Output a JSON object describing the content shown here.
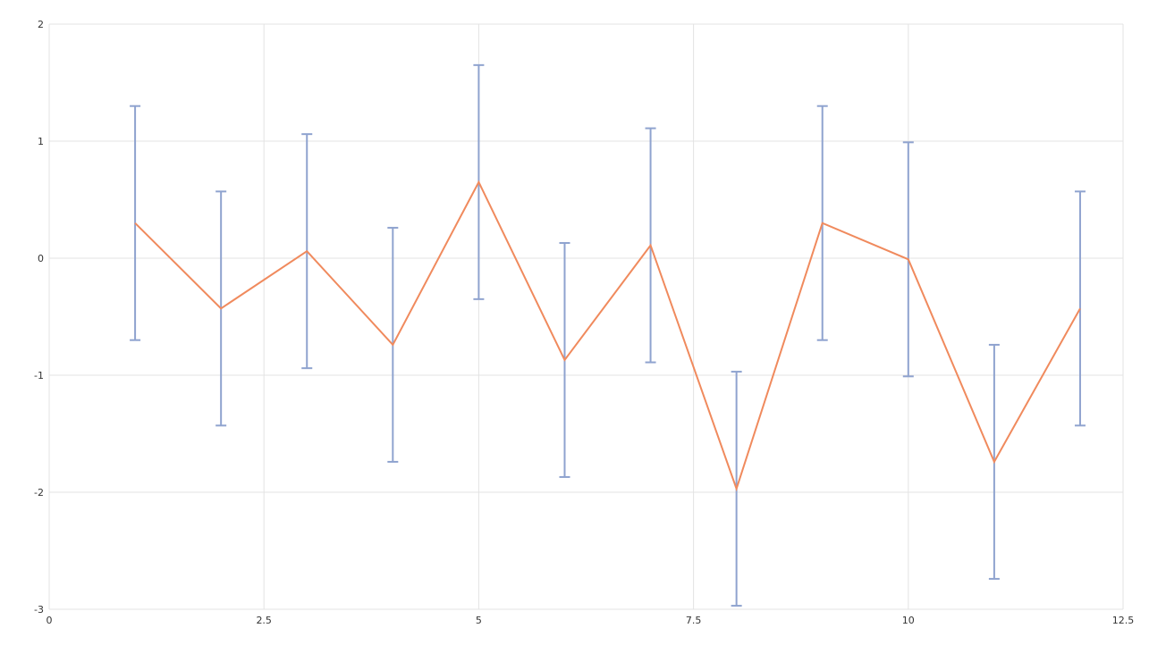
{
  "chart_data": {
    "type": "line",
    "title": "",
    "xlabel": "",
    "ylabel": "",
    "xlim": [
      0,
      12.5
    ],
    "ylim": [
      -3,
      2
    ],
    "x_ticks": [
      0,
      2.5,
      5,
      7.5,
      10,
      12.5
    ],
    "x_tick_labels": [
      "0",
      "2.5",
      "5",
      "7.5",
      "10",
      "12.5"
    ],
    "y_ticks": [
      -3,
      -2,
      -1,
      0,
      1,
      2
    ],
    "y_tick_labels": [
      "-3",
      "-2",
      "-1",
      "0",
      "1",
      "2"
    ],
    "grid": true,
    "legend": "none",
    "series": [
      {
        "x": [
          1,
          2,
          3,
          4,
          5,
          6,
          7,
          8,
          9,
          10,
          11,
          12
        ],
        "values": [
          0.3,
          -0.43,
          0.06,
          -0.74,
          0.65,
          -0.87,
          0.11,
          -1.97,
          0.3,
          -0.01,
          -1.74,
          -0.43
        ],
        "error_minus": [
          1.0,
          1.0,
          1.0,
          1.0,
          1.0,
          1.0,
          1.0,
          1.0,
          1.0,
          1.0,
          1.0,
          1.0
        ],
        "error_plus": [
          1.0,
          1.0,
          1.0,
          1.0,
          1.0,
          1.0,
          1.0,
          1.0,
          1.0,
          1.0,
          1.0,
          1.0
        ],
        "line_color": "#f08a5d",
        "error_color": "#8fa3cf"
      }
    ]
  }
}
